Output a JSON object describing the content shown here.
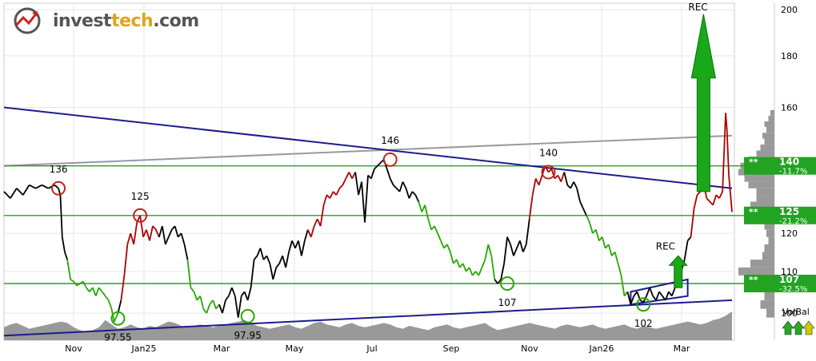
{
  "brand": {
    "name_prefix": "invest",
    "name_accent": "tech",
    "name_suffix": ".com",
    "logo_icon": "invesstech-logo-icon"
  },
  "chart_data": {
    "type": "line",
    "xlabel": "",
    "ylabel": "",
    "x_ticks": [
      "Nov",
      "Jan25",
      "Mar",
      "May",
      "Jul",
      "Sep",
      "Nov",
      "Jan26",
      "Mar"
    ],
    "y_ticks": [
      100,
      110,
      120,
      140,
      160,
      180,
      200
    ],
    "ylim": [
      94,
      203
    ],
    "y_scale": "log",
    "grid": true,
    "price_path": [
      [
        0,
        132
      ],
      [
        1,
        130
      ],
      [
        2,
        133
      ],
      [
        3,
        131
      ],
      [
        4,
        134
      ],
      [
        5,
        133
      ],
      [
        6,
        134
      ],
      [
        7,
        133
      ],
      [
        8,
        134
      ],
      [
        8.6,
        133
      ],
      [
        8.9,
        131
      ],
      [
        9.2,
        119
      ],
      [
        9.6,
        115
      ],
      [
        10,
        113
      ],
      [
        10.5,
        108
      ],
      [
        11,
        107.5
      ],
      [
        11.5,
        106.5
      ],
      [
        12,
        107
      ],
      [
        12.5,
        107.5
      ],
      [
        13,
        106
      ],
      [
        13.5,
        105
      ],
      [
        14,
        106
      ],
      [
        14.5,
        104
      ],
      [
        15,
        106
      ],
      [
        15.5,
        105
      ],
      [
        16,
        104
      ],
      [
        16.5,
        103
      ],
      [
        17,
        101
      ],
      [
        17.4,
        98
      ],
      [
        17.7,
        99
      ],
      [
        18,
        100
      ],
      [
        18.5,
        103
      ],
      [
        19,
        109
      ],
      [
        19.5,
        117
      ],
      [
        20,
        120
      ],
      [
        20.5,
        117
      ],
      [
        21,
        123
      ],
      [
        21.5,
        125
      ],
      [
        22,
        119
      ],
      [
        22.5,
        121
      ],
      [
        23,
        118
      ],
      [
        23.5,
        122
      ],
      [
        24,
        121
      ],
      [
        24.5,
        119
      ],
      [
        25,
        122
      ],
      [
        25.5,
        117
      ],
      [
        26,
        119
      ],
      [
        26.5,
        121
      ],
      [
        27,
        122
      ],
      [
        27.5,
        119
      ],
      [
        28,
        120
      ],
      [
        28.5,
        117
      ],
      [
        29,
        113
      ],
      [
        29.5,
        106
      ],
      [
        30,
        105
      ],
      [
        30.5,
        103
      ],
      [
        31,
        104
      ],
      [
        31.5,
        101
      ],
      [
        32,
        100
      ],
      [
        32.5,
        102
      ],
      [
        33,
        103
      ],
      [
        33.5,
        101
      ],
      [
        34,
        102
      ],
      [
        34.5,
        100
      ],
      [
        35,
        103
      ],
      [
        35.5,
        104
      ],
      [
        36,
        106
      ],
      [
        36.5,
        104
      ],
      [
        37,
        99
      ],
      [
        37.5,
        104
      ],
      [
        38,
        105
      ],
      [
        38.5,
        103
      ],
      [
        39,
        106
      ],
      [
        39.5,
        113
      ],
      [
        40,
        114
      ],
      [
        40.5,
        116
      ],
      [
        41,
        113
      ],
      [
        41.5,
        114
      ],
      [
        42,
        112
      ],
      [
        42.5,
        108
      ],
      [
        43,
        111
      ],
      [
        43.5,
        112
      ],
      [
        44,
        114
      ],
      [
        44.5,
        111
      ],
      [
        45,
        115
      ],
      [
        45.5,
        118
      ],
      [
        46,
        116
      ],
      [
        46.5,
        118
      ],
      [
        47,
        114
      ],
      [
        47.5,
        118
      ],
      [
        48,
        121
      ],
      [
        48.5,
        119
      ],
      [
        49,
        122
      ],
      [
        49.5,
        124
      ],
      [
        50,
        122
      ],
      [
        50.5,
        128
      ],
      [
        51,
        131
      ],
      [
        51.5,
        130
      ],
      [
        52,
        132
      ],
      [
        52.5,
        131
      ],
      [
        53,
        133
      ],
      [
        53.5,
        134
      ],
      [
        54,
        136
      ],
      [
        54.5,
        138
      ],
      [
        55,
        136
      ],
      [
        55.5,
        138
      ],
      [
        56,
        131
      ],
      [
        56.5,
        135
      ],
      [
        57,
        123
      ],
      [
        57.5,
        137
      ],
      [
        58,
        136
      ],
      [
        58.5,
        139
      ],
      [
        59,
        140
      ],
      [
        59.5,
        141
      ],
      [
        60,
        142
      ],
      [
        60.5,
        139
      ],
      [
        61,
        136
      ],
      [
        61.5,
        134
      ],
      [
        62,
        133
      ],
      [
        62.5,
        132
      ],
      [
        63,
        135
      ],
      [
        63.5,
        133
      ],
      [
        64,
        130
      ],
      [
        64.5,
        132
      ],
      [
        65,
        131
      ],
      [
        65.5,
        129
      ],
      [
        66,
        126
      ],
      [
        66.5,
        128
      ],
      [
        67,
        124
      ],
      [
        67.5,
        121
      ],
      [
        68,
        122
      ],
      [
        68.5,
        120
      ],
      [
        69,
        118
      ],
      [
        69.5,
        116
      ],
      [
        70,
        117
      ],
      [
        70.5,
        115
      ],
      [
        71,
        112
      ],
      [
        71.5,
        113
      ],
      [
        72,
        111
      ],
      [
        72.5,
        112
      ],
      [
        73,
        110
      ],
      [
        73.5,
        111
      ],
      [
        74,
        109
      ],
      [
        74.5,
        110
      ],
      [
        75,
        109
      ],
      [
        75.5,
        111
      ],
      [
        76,
        113
      ],
      [
        76.5,
        117
      ],
      [
        77,
        114
      ],
      [
        77.5,
        108
      ],
      [
        78,
        107
      ],
      [
        78.5,
        108
      ],
      [
        79,
        112
      ],
      [
        79.5,
        119
      ],
      [
        80,
        117
      ],
      [
        80.5,
        114
      ],
      [
        81,
        116
      ],
      [
        81.5,
        118
      ],
      [
        82,
        115
      ],
      [
        82.5,
        117
      ],
      [
        83,
        124
      ],
      [
        83.5,
        131
      ],
      [
        84,
        136
      ],
      [
        84.5,
        134
      ],
      [
        85,
        137
      ],
      [
        85.5,
        140
      ],
      [
        86,
        138
      ],
      [
        86.5,
        139
      ],
      [
        87,
        136
      ],
      [
        87.5,
        137
      ],
      [
        88,
        135
      ],
      [
        88.5,
        138
      ],
      [
        89,
        134
      ],
      [
        89.5,
        133
      ],
      [
        90,
        135
      ],
      [
        90.5,
        133
      ],
      [
        91,
        129
      ],
      [
        91.5,
        127
      ],
      [
        92,
        125
      ],
      [
        92.5,
        123
      ],
      [
        93,
        120
      ],
      [
        93.5,
        121
      ],
      [
        94,
        118
      ],
      [
        94.5,
        119
      ],
      [
        95,
        116
      ],
      [
        95.5,
        117
      ],
      [
        96,
        114
      ],
      [
        96.5,
        115
      ],
      [
        97,
        112
      ],
      [
        97.5,
        109
      ],
      [
        98,
        104
      ],
      [
        98.5,
        105
      ],
      [
        99,
        102
      ],
      [
        99.5,
        104
      ],
      [
        100,
        105
      ],
      [
        100.5,
        103
      ],
      [
        101,
        102.5
      ],
      [
        101.5,
        104
      ],
      [
        102,
        106
      ],
      [
        102.5,
        104
      ],
      [
        103,
        103
      ],
      [
        103.5,
        105
      ],
      [
        104,
        104
      ],
      [
        104.5,
        103
      ],
      [
        105,
        105
      ],
      [
        105.5,
        104
      ],
      [
        106,
        106
      ],
      [
        106.5,
        108
      ],
      [
        107,
        110
      ],
      [
        107.5,
        113
      ],
      [
        108,
        118
      ],
      [
        108.5,
        119
      ],
      [
        109,
        127
      ],
      [
        109.5,
        131
      ],
      [
        110,
        132
      ],
      [
        110.5,
        135
      ],
      [
        111,
        130
      ],
      [
        111.5,
        129
      ],
      [
        112,
        128
      ],
      [
        112.5,
        131
      ],
      [
        113,
        130
      ],
      [
        113.5,
        132
      ],
      [
        113.8,
        147
      ],
      [
        114,
        158
      ],
      [
        114.2,
        152
      ],
      [
        114.5,
        137
      ],
      [
        115,
        126
      ]
    ],
    "trend_channel": [
      {
        "name": "",
        "points": [
          [
            0,
            160
          ],
          [
            115,
            133
          ]
        ],
        "color": "#1c1c8c"
      },
      {
        "name": "",
        "points": [
          [
            0,
            95
          ],
          [
            115,
            103
          ]
        ],
        "color": "#1c1c8c"
      }
    ],
    "secondary_trend": [
      {
        "name": "",
        "points": [
          [
            0,
            140
          ],
          [
            115,
            150
          ]
        ],
        "color": "#999999"
      }
    ],
    "rectangle_formation": {
      "points": [
        [
          99,
          102
        ],
        [
          108,
          108
        ]
      ],
      "color": "#1c1c8c"
    },
    "support_resistance": [
      {
        "value": 140,
        "label": "140",
        "pct": "-11.7%"
      },
      {
        "value": 125,
        "label": "125",
        "pct": "-21.2%"
      },
      {
        "value": 107,
        "label": "107",
        "pct": "-32.5%"
      }
    ],
    "circle_annotations": [
      {
        "x": 8.6,
        "y": 133,
        "label": "136",
        "kind": "top"
      },
      {
        "x": 21.5,
        "y": 125,
        "label": "125",
        "kind": "top"
      },
      {
        "x": 18,
        "y": 98.8,
        "label": "97.55",
        "kind": "bottom"
      },
      {
        "x": 38.5,
        "y": 99.3,
        "label": "97.95",
        "kind": "bottom"
      },
      {
        "x": 61,
        "y": 142,
        "label": "146",
        "kind": "top"
      },
      {
        "x": 79.5,
        "y": 107,
        "label": "107",
        "kind": "bottom"
      },
      {
        "x": 86,
        "y": 138,
        "label": "140",
        "kind": "top"
      },
      {
        "x": 101,
        "y": 102,
        "label": "102",
        "kind": "bottom"
      }
    ],
    "signals": [
      {
        "text": "REC",
        "arrow_from": 132,
        "arrow_to": 198,
        "x": 110.5,
        "size": "large"
      },
      {
        "text": "REC",
        "arrow_from": 106,
        "arrow_to": 114,
        "x": 106.5,
        "size": "small"
      }
    ],
    "volume_balance_label": "VolBal",
    "volume_balance_icons": [
      "up-arrow-icon",
      "up-arrow-icon",
      "up-arrow-icon"
    ],
    "volume_balance_colors": [
      "#22aa22",
      "#22aa22",
      "#c8cc00"
    ],
    "volume_profile_levels": [
      100,
      102,
      104,
      106,
      108,
      110,
      112,
      114,
      116,
      118,
      120,
      122,
      124,
      126,
      128,
      130,
      132,
      134,
      136,
      138,
      140,
      142,
      144,
      146,
      148,
      150,
      152,
      154,
      156,
      158
    ],
    "volume_profile_sizes": [
      0.2,
      0.35,
      0.25,
      0.3,
      0.55,
      0.9,
      0.6,
      0.3,
      0.25,
      0.15,
      0.2,
      0.25,
      0.35,
      0.5,
      0.6,
      0.45,
      0.45,
      0.65,
      0.75,
      0.9,
      0.85,
      0.65,
      0.45,
      0.35,
      0.25,
      0.3,
      0.2,
      0.25,
      0.15,
      0.1
    ],
    "volume": [
      0.45,
      0.55,
      0.6,
      0.5,
      0.4,
      0.45,
      0.5,
      0.55,
      0.6,
      0.65,
      0.6,
      0.45,
      0.35,
      0.3,
      0.35,
      0.45,
      0.7,
      0.55,
      0.4,
      0.45,
      0.55,
      0.45,
      0.4,
      0.5,
      0.45,
      0.55,
      0.65,
      0.6,
      0.5,
      0.45,
      0.5,
      0.55,
      0.5,
      0.45,
      0.5,
      0.55,
      0.6,
      0.65,
      0.7,
      0.6,
      0.5,
      0.45,
      0.4,
      0.45,
      0.5,
      0.55,
      0.45,
      0.4,
      0.5,
      0.6,
      0.65,
      0.55,
      0.5,
      0.45,
      0.55,
      0.6,
      0.5,
      0.45,
      0.5,
      0.55,
      0.6,
      0.55,
      0.45,
      0.4,
      0.5,
      0.45,
      0.4,
      0.35,
      0.45,
      0.5,
      0.55,
      0.45,
      0.4,
      0.45,
      0.5,
      0.55,
      0.6,
      0.45,
      0.35,
      0.4,
      0.45,
      0.5,
      0.55,
      0.6,
      0.55,
      0.5,
      0.45,
      0.4,
      0.5,
      0.55,
      0.5,
      0.45,
      0.5,
      0.55,
      0.45,
      0.4,
      0.45,
      0.5,
      0.55,
      0.45,
      0.4,
      0.5,
      0.45,
      0.4,
      0.45,
      0.5,
      0.55,
      0.6,
      0.65,
      0.6,
      0.55,
      0.6,
      0.7,
      0.75,
      0.85,
      1.0
    ],
    "colors": {
      "price_up": "#b00000",
      "price_down": "#28a800",
      "price_neutral": "#000000",
      "support": "#22a322",
      "trend": "#1c1c8c",
      "grid": "#e6e6e6",
      "volume": "#999999",
      "signal_arrow": "#18a818"
    }
  }
}
